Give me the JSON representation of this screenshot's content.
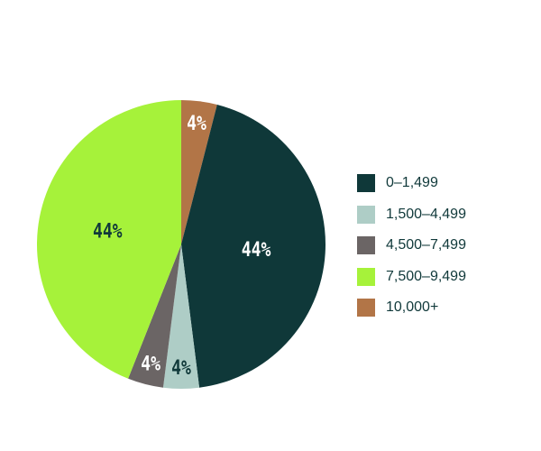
{
  "chart_data": {
    "type": "pie",
    "start": "top",
    "direction": "clockwise",
    "legend_position": "right",
    "categories": [
      "0–1,499",
      "1,500–4,499",
      "4,500–7,499",
      "7,500–9,499",
      "10,000+"
    ],
    "values": [
      44,
      4,
      4,
      44,
      4
    ],
    "data_labels": [
      "44%",
      "4%",
      "4%",
      "44%",
      "4%"
    ],
    "colors": [
      "#0f3839",
      "#aecdc6",
      "#6b6565",
      "#a6f23a",
      "#b27547"
    ],
    "label_colors": [
      "#ffffff",
      "#10393a",
      "#ffffff",
      "#10393a",
      "#ffffff"
    ],
    "draw_order": [
      4,
      0,
      1,
      2,
      3
    ]
  }
}
